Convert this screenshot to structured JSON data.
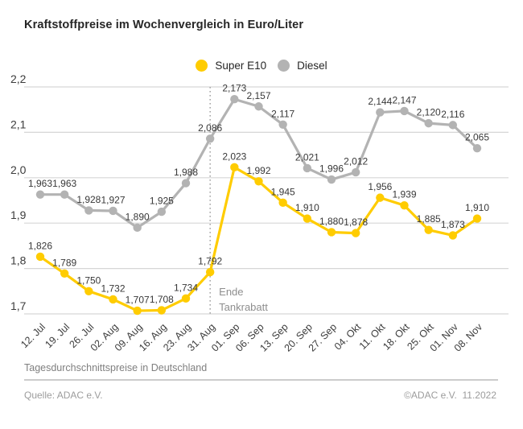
{
  "title": "Kraftstoffpreise im Wochenvergleich in Euro/Liter",
  "annotation": {
    "lines": [
      "Ende",
      "Tankrabatt"
    ]
  },
  "footer": {
    "note": "Tagesdurchschnittspreise in Deutschland",
    "source": "Quelle: ADAC e.V.",
    "copyright": "©ADAC e.V.  11.2022"
  },
  "colors": {
    "super_e10": "#FFCC00",
    "diesel": "#B3B3B3",
    "grid": "#D6D6D6",
    "divider_dotted": "#9C9C9C",
    "label_text": "#383838",
    "muted_text": "#8E8E8E"
  },
  "chart_data": {
    "type": "line",
    "title": "Kraftstoffpreise im Wochenvergleich in Euro/Liter",
    "xlabel": "",
    "ylabel": "Euro/Liter",
    "ylim": [
      1.7,
      2.2
    ],
    "ytick_step": 0.1,
    "ytick_labels": [
      "2,2",
      "2,1",
      "2,0",
      "1,9",
      "1,8",
      "1,7"
    ],
    "grid": true,
    "legend_position": "top-center",
    "decimal_separator": ",",
    "categories": [
      "12. Jul",
      "19. Jul",
      "26. Jul",
      "02. Aug",
      "09. Aug",
      "16. Aug",
      "23. Aug",
      "31. Aug",
      "01. Sep",
      "06. Sep",
      "13. Sep",
      "20. Sep",
      "27. Sep",
      "04. Okt",
      "11. Okt",
      "18. Okt",
      "25. Okt",
      "01. Nov",
      "08. Nov"
    ],
    "series": [
      {
        "name": "Super E10",
        "color": "#FFCC00",
        "values": [
          1.826,
          1.789,
          1.75,
          1.732,
          1.707,
          1.708,
          1.734,
          1.792,
          2.023,
          1.992,
          1.945,
          1.91,
          1.88,
          1.878,
          1.956,
          1.939,
          1.885,
          1.873,
          1.91
        ]
      },
      {
        "name": "Diesel",
        "color": "#B3B3B3",
        "values": [
          1.963,
          1.963,
          1.928,
          1.927,
          1.89,
          1.925,
          1.988,
          2.086,
          2.173,
          2.157,
          2.117,
          2.021,
          1.996,
          2.012,
          2.144,
          2.147,
          2.12,
          2.116,
          2.065
        ]
      }
    ],
    "annotation": {
      "category": "31. Aug",
      "label": "Ende Tankrabatt"
    }
  }
}
